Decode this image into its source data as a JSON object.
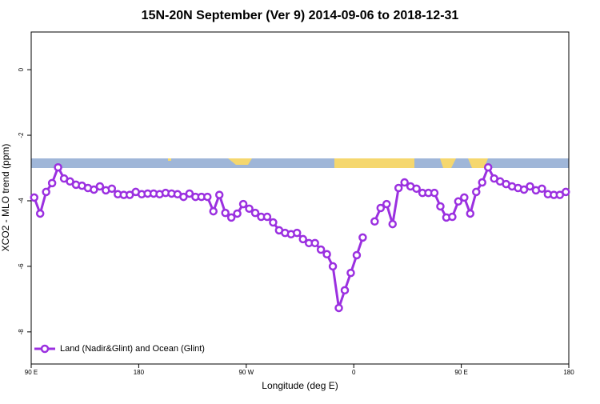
{
  "chart_data": {
    "type": "line",
    "title": "15N-20N September (Ver 9)   2014-09-06 to 2018-12-31",
    "x_label": "Longitude (deg E)",
    "y_label": "XCO2 - MLO trend (ppm)",
    "xlim": [
      90,
      540
    ],
    "ylim": [
      -8.98,
      1.15
    ],
    "xticks": [
      {
        "value": 90,
        "label": "90 E"
      },
      180,
      {
        "value": 270,
        "label": "90 W"
      },
      {
        "value": 360,
        "label": "0"
      },
      {
        "value": 450,
        "label": "90 E"
      },
      {
        "value": 540,
        "label": "180"
      }
    ],
    "yticks": [
      0,
      -2,
      -4,
      -6,
      -8
    ],
    "legend_position": "bottom-left",
    "x": [
      92.5,
      97.5,
      102.5,
      107.5,
      112.5,
      117.5,
      122.5,
      127.5,
      132.5,
      137.5,
      142.5,
      147.5,
      152.5,
      157.5,
      162.5,
      167.5,
      172.5,
      177.5,
      182.5,
      187.5,
      192.5,
      197.5,
      202.5,
      207.5,
      212.5,
      217.5,
      222.5,
      227.5,
      232.5,
      237.5,
      242.5,
      247.5,
      252.5,
      257.5,
      262.5,
      267.5,
      272.5,
      277.5,
      282.5,
      287.5,
      292.5,
      297.5,
      302.5,
      307.5,
      312.5,
      317.5,
      322.5,
      327.5,
      332.5,
      337.5,
      342.5,
      347.5,
      352.5,
      357.5,
      362.5,
      367.5,
      372.5,
      377.5,
      382.5,
      387.5,
      392.5,
      397.5,
      402.5,
      407.5,
      412.5,
      417.5,
      422.5,
      427.5,
      432.5,
      437.5,
      442.5,
      447.5,
      452.5,
      457.5,
      462.5,
      467.5,
      472.5,
      477.5,
      482.5,
      487.5,
      492.5,
      497.5,
      502.5,
      507.5,
      512.5,
      517.5,
      522.5,
      527.5,
      532.5,
      537.5
    ],
    "series": [
      {
        "name": "Land (Nadir&Glint) and Ocean (Glint)",
        "color": "#9b30e0",
        "values": [
          -3.9,
          -4.39,
          -3.73,
          -3.46,
          -2.98,
          -3.32,
          -3.41,
          -3.51,
          -3.54,
          -3.61,
          -3.66,
          -3.56,
          -3.68,
          -3.63,
          -3.8,
          -3.82,
          -3.82,
          -3.73,
          -3.8,
          -3.78,
          -3.78,
          -3.8,
          -3.76,
          -3.78,
          -3.8,
          -3.88,
          -3.78,
          -3.88,
          -3.88,
          -3.88,
          -4.32,
          -3.82,
          -4.37,
          -4.51,
          -4.39,
          -4.1,
          -4.24,
          -4.37,
          -4.49,
          -4.49,
          -4.66,
          -4.9,
          -4.98,
          -5.02,
          -4.98,
          -5.17,
          -5.29,
          -5.29,
          -5.49,
          -5.63,
          -6.0,
          -7.27,
          -6.73,
          -6.2,
          -5.66,
          -5.12,
          null,
          -4.63,
          -4.22,
          -4.1,
          -4.71,
          -3.61,
          -3.44,
          -3.56,
          -3.63,
          -3.76,
          -3.76,
          -3.76,
          -4.17,
          -4.51,
          -4.49,
          -4.02,
          -3.9,
          -4.39,
          -3.73,
          -3.44,
          -2.98,
          -3.32,
          -3.41,
          -3.49,
          -3.56,
          -3.61,
          -3.66,
          -3.56,
          -3.68,
          -3.63,
          -3.8,
          -3.82,
          -3.82,
          -3.73
        ]
      }
    ]
  }
}
